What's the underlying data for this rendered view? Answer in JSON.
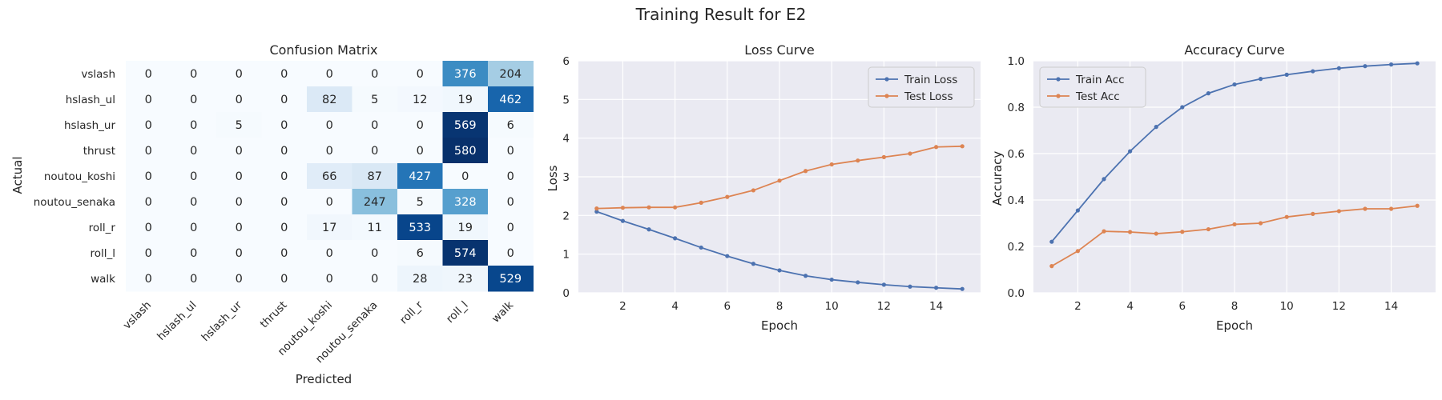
{
  "figure": {
    "suptitle": "Training Result for E2"
  },
  "colors": {
    "train": "#4c72b0",
    "test": "#dd8452",
    "axes_bg": "#eaeaf2",
    "grid": "#ffffff",
    "heatmap_low": "#f7fbff",
    "heatmap_high": "#08306b"
  },
  "chart_data": [
    {
      "type": "heatmap",
      "title": "Confusion Matrix",
      "xlabel": "Predicted",
      "ylabel": "Actual",
      "labels": [
        "vslash",
        "hslash_ul",
        "hslash_ur",
        "thrust",
        "noutou_koshi",
        "noutou_senaka",
        "roll_r",
        "roll_l",
        "walk"
      ],
      "matrix": [
        [
          0,
          0,
          0,
          0,
          0,
          0,
          0,
          376,
          204
        ],
        [
          0,
          0,
          0,
          0,
          82,
          5,
          12,
          19,
          462
        ],
        [
          0,
          0,
          5,
          0,
          0,
          0,
          0,
          569,
          6
        ],
        [
          0,
          0,
          0,
          0,
          0,
          0,
          0,
          580,
          0
        ],
        [
          0,
          0,
          0,
          0,
          66,
          87,
          427,
          0,
          0
        ],
        [
          0,
          0,
          0,
          0,
          0,
          247,
          5,
          328,
          0
        ],
        [
          0,
          0,
          0,
          0,
          17,
          11,
          533,
          19,
          0
        ],
        [
          0,
          0,
          0,
          0,
          0,
          0,
          6,
          574,
          0
        ],
        [
          0,
          0,
          0,
          0,
          0,
          0,
          28,
          23,
          529
        ]
      ],
      "colormap": "Blues",
      "colorbar": false
    },
    {
      "type": "line",
      "title": "Loss Curve",
      "xlabel": "Epoch",
      "ylabel": "Loss",
      "x": [
        1,
        2,
        3,
        4,
        5,
        6,
        7,
        8,
        9,
        10,
        11,
        12,
        13,
        14,
        15
      ],
      "series": [
        {
          "name": "Train Loss",
          "values": [
            2.1,
            1.86,
            1.64,
            1.41,
            1.17,
            0.95,
            0.75,
            0.58,
            0.44,
            0.34,
            0.27,
            0.21,
            0.16,
            0.13,
            0.1
          ]
        },
        {
          "name": "Test Loss",
          "values": [
            2.18,
            2.2,
            2.21,
            2.21,
            2.33,
            2.48,
            2.65,
            2.9,
            3.15,
            3.32,
            3.42,
            3.51,
            3.6,
            3.77,
            3.79
          ]
        }
      ],
      "xticks": [
        2,
        4,
        6,
        8,
        10,
        12,
        14
      ],
      "yticks": [
        0,
        1,
        2,
        3,
        4,
        5,
        6
      ],
      "xlim": [
        0.3,
        15.7
      ],
      "ylim": [
        0,
        6
      ],
      "legend": "upper right",
      "grid": true
    },
    {
      "type": "line",
      "title": "Accuracy Curve",
      "xlabel": "Epoch",
      "ylabel": "Accuracy",
      "x": [
        1,
        2,
        3,
        4,
        5,
        6,
        7,
        8,
        9,
        10,
        11,
        12,
        13,
        14,
        15
      ],
      "series": [
        {
          "name": "Train Acc",
          "values": [
            0.22,
            0.355,
            0.49,
            0.61,
            0.715,
            0.8,
            0.86,
            0.898,
            0.922,
            0.94,
            0.955,
            0.968,
            0.977,
            0.984,
            0.989
          ]
        },
        {
          "name": "Test Acc",
          "values": [
            0.115,
            0.18,
            0.265,
            0.262,
            0.255,
            0.263,
            0.274,
            0.295,
            0.3,
            0.327,
            0.34,
            0.352,
            0.362,
            0.362,
            0.375
          ]
        }
      ],
      "xticks": [
        2,
        4,
        6,
        8,
        10,
        12,
        14
      ],
      "yticks": [
        "0.0",
        "0.2",
        "0.4",
        "0.6",
        "0.8",
        "1.0"
      ],
      "xlim": [
        0.3,
        15.7
      ],
      "ylim": [
        0,
        1
      ],
      "legend": "upper left",
      "grid": true
    }
  ]
}
